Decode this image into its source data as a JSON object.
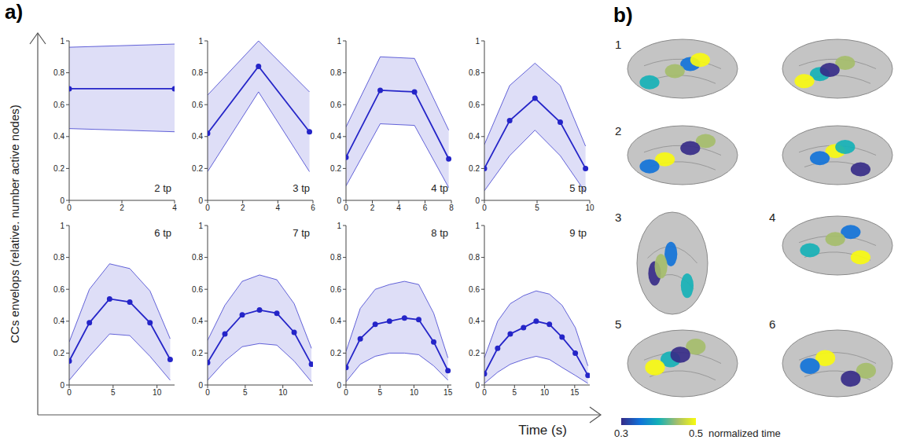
{
  "chart_data": [
    {
      "type": "line",
      "title": "2 tp",
      "x": [
        0,
        4
      ],
      "series": [
        {
          "color": "#2525c8",
          "marker": "circle",
          "values": [
            0.7,
            0.7
          ],
          "lower": [
            0.45,
            0.43
          ],
          "upper": [
            0.96,
            0.98
          ]
        }
      ],
      "xlim": [
        0,
        4
      ],
      "xticks": [
        0,
        2,
        4
      ],
      "ylim": [
        0,
        1
      ],
      "yticks": [
        0,
        0.2,
        0.4,
        0.6,
        0.8,
        1
      ]
    },
    {
      "type": "line",
      "title": "3 tp",
      "x": [
        0,
        2.9,
        5.8
      ],
      "series": [
        {
          "color": "#2525c8",
          "marker": "circle",
          "values": [
            0.42,
            0.84,
            0.43
          ],
          "lower": [
            0.18,
            0.68,
            0.18
          ],
          "upper": [
            0.66,
            1.0,
            0.68
          ]
        }
      ],
      "xlim": [
        0,
        6
      ],
      "xticks": [
        0,
        2,
        4,
        6
      ],
      "ylim": [
        0,
        1
      ],
      "yticks": [
        0,
        0.2,
        0.4,
        0.6,
        0.8,
        1
      ]
    },
    {
      "type": "line",
      "title": "4 tp",
      "x": [
        0,
        2.6,
        5.2,
        7.8
      ],
      "series": [
        {
          "color": "#2525c8",
          "marker": "circle",
          "values": [
            0.27,
            0.69,
            0.68,
            0.26
          ],
          "lower": [
            0.09,
            0.48,
            0.47,
            0.08
          ],
          "upper": [
            0.46,
            0.9,
            0.89,
            0.44
          ]
        }
      ],
      "xlim": [
        0,
        8
      ],
      "xticks": [
        0,
        2,
        4,
        6,
        8
      ],
      "ylim": [
        0,
        1
      ],
      "yticks": [
        0,
        0.2,
        0.4,
        0.6,
        0.8,
        1
      ]
    },
    {
      "type": "line",
      "title": "5 tp",
      "x": [
        0,
        2.4,
        4.8,
        7.2,
        9.6
      ],
      "series": [
        {
          "color": "#2525c8",
          "marker": "circle",
          "values": [
            0.2,
            0.5,
            0.64,
            0.49,
            0.2
          ],
          "lower": [
            0.06,
            0.28,
            0.44,
            0.28,
            0.05
          ],
          "upper": [
            0.35,
            0.72,
            0.86,
            0.72,
            0.34
          ]
        }
      ],
      "xlim": [
        0,
        10
      ],
      "xticks": [
        0,
        5,
        10
      ],
      "ylim": [
        0,
        1
      ],
      "yticks": [
        0,
        0.2,
        0.4,
        0.6,
        0.8,
        1
      ]
    },
    {
      "type": "line",
      "title": "6 tp",
      "x": [
        0,
        2.3,
        4.6,
        6.9,
        9.2,
        11.5
      ],
      "series": [
        {
          "color": "#2525c8",
          "marker": "circle",
          "values": [
            0.15,
            0.39,
            0.54,
            0.52,
            0.39,
            0.16
          ],
          "lower": [
            0.03,
            0.18,
            0.32,
            0.31,
            0.18,
            0.03
          ],
          "upper": [
            0.27,
            0.6,
            0.76,
            0.73,
            0.59,
            0.29
          ]
        }
      ],
      "xlim": [
        0,
        12
      ],
      "xticks": [
        0,
        5,
        10
      ],
      "ylim": [
        0,
        1
      ],
      "yticks": [
        0,
        0.2,
        0.4,
        0.6,
        0.8,
        1
      ]
    },
    {
      "type": "line",
      "title": "7 tp",
      "x": [
        0,
        2.3,
        4.6,
        6.9,
        9.2,
        11.5,
        13.8
      ],
      "series": [
        {
          "color": "#2525c8",
          "marker": "circle",
          "values": [
            0.14,
            0.32,
            0.44,
            0.47,
            0.45,
            0.33,
            0.13
          ],
          "lower": [
            0.03,
            0.15,
            0.24,
            0.26,
            0.25,
            0.15,
            0.02
          ],
          "upper": [
            0.28,
            0.5,
            0.65,
            0.69,
            0.66,
            0.51,
            0.23
          ]
        }
      ],
      "xlim": [
        0,
        14
      ],
      "xticks": [
        0,
        5,
        10
      ],
      "ylim": [
        0,
        1
      ],
      "yticks": [
        0,
        0.2,
        0.4,
        0.6,
        0.8,
        1
      ]
    },
    {
      "type": "line",
      "title": "8 tp",
      "x": [
        0,
        2.1,
        4.3,
        6.4,
        8.6,
        10.7,
        12.9,
        15
      ],
      "series": [
        {
          "color": "#2525c8",
          "marker": "circle",
          "values": [
            0.11,
            0.29,
            0.38,
            0.4,
            0.42,
            0.41,
            0.27,
            0.09
          ],
          "lower": [
            0.02,
            0.13,
            0.18,
            0.2,
            0.2,
            0.19,
            0.12,
            0.03
          ],
          "upper": [
            0.21,
            0.48,
            0.6,
            0.63,
            0.65,
            0.63,
            0.45,
            0.17
          ]
        }
      ],
      "xlim": [
        0,
        15.5
      ],
      "xticks": [
        0,
        5,
        10,
        15
      ],
      "ylim": [
        0,
        1
      ],
      "yticks": [
        0,
        0.2,
        0.4,
        0.6,
        0.8,
        1
      ]
    },
    {
      "type": "line",
      "title": "9 tp",
      "x": [
        0,
        2.2,
        4.3,
        6.5,
        8.6,
        10.8,
        12.9,
        15.1,
        17.2
      ],
      "series": [
        {
          "color": "#2525c8",
          "marker": "circle",
          "values": [
            0.07,
            0.23,
            0.32,
            0.36,
            0.4,
            0.38,
            0.3,
            0.2,
            0.06
          ],
          "lower": [
            0.01,
            0.08,
            0.13,
            0.16,
            0.18,
            0.16,
            0.11,
            0.06,
            0.01
          ],
          "upper": [
            0.17,
            0.4,
            0.51,
            0.56,
            0.59,
            0.57,
            0.5,
            0.36,
            0.12
          ]
        }
      ],
      "xlim": [
        0,
        17.5
      ],
      "xticks": [
        0,
        5,
        10,
        15
      ],
      "ylim": [
        0,
        1
      ],
      "yticks": [
        0,
        0.2,
        0.4,
        0.6,
        0.8,
        1
      ]
    }
  ],
  "figure": {
    "panel_a": {
      "label": "a)",
      "ylabel": "CCs envelops (relative. number active nodes)",
      "xlabel": "Time (s)"
    },
    "panel_b": {
      "label": "b)",
      "views": [
        "1",
        "2",
        "3",
        "4",
        "5",
        "6"
      ],
      "colorbar": {
        "range": [
          0.3,
          0.5
        ],
        "ticks": [
          0.3,
          0.5
        ],
        "label": "normalized time"
      }
    }
  }
}
